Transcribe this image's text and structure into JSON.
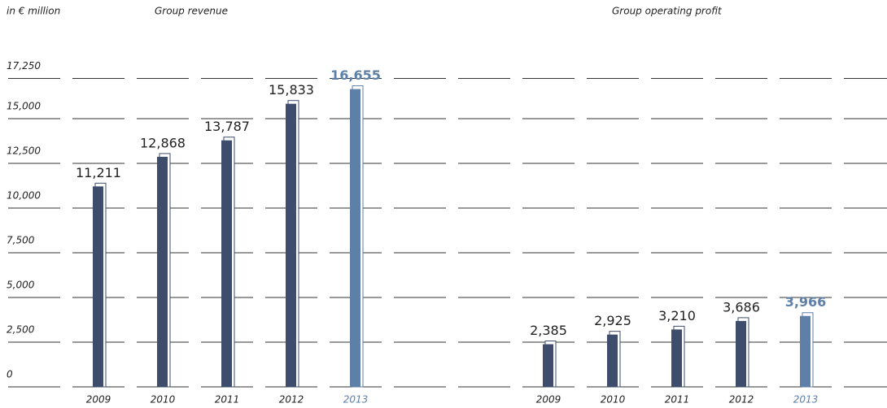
{
  "chart_data": [
    {
      "type": "bar",
      "title": "Group revenue",
      "y_label": "in € million",
      "categories": [
        "2009",
        "2010",
        "2011",
        "2012",
        "2013"
      ],
      "values": [
        11211,
        12868,
        13787,
        15833,
        16655
      ],
      "value_labels": [
        "11,211",
        "12,868",
        "13,787",
        "15,833",
        "16,655"
      ],
      "colors": [
        "#3e4d6b",
        "#3e4d6b",
        "#3e4d6b",
        "#3e4d6b",
        "#5e80a8"
      ],
      "ylim": [
        0,
        17250
      ],
      "yticks": [
        0,
        {
          "value": 2500,
          "label": "2,500"
        },
        {
          "value": 5000,
          "label": "5,000"
        },
        {
          "value": 7500,
          "label": "7,500"
        },
        {
          "value": 10000,
          "label": "10,000"
        },
        {
          "value": 12500,
          "label": "12,500"
        },
        {
          "value": 15000,
          "label": "15,000"
        },
        {
          "value": 17250,
          "label": "17,250"
        }
      ]
    },
    {
      "type": "bar",
      "title": "Group operating profit",
      "categories": [
        "2009",
        "2010",
        "2011",
        "2012",
        "2013"
      ],
      "values": [
        2385,
        2925,
        3210,
        3686,
        3966
      ],
      "value_labels": [
        "2,385",
        "2,925",
        "3,210",
        "3,686",
        "3,966"
      ],
      "colors": [
        "#3e4d6b",
        "#3e4d6b",
        "#3e4d6b",
        "#3e4d6b",
        "#5e80a8"
      ],
      "ylim": [
        0,
        17250
      ]
    }
  ]
}
